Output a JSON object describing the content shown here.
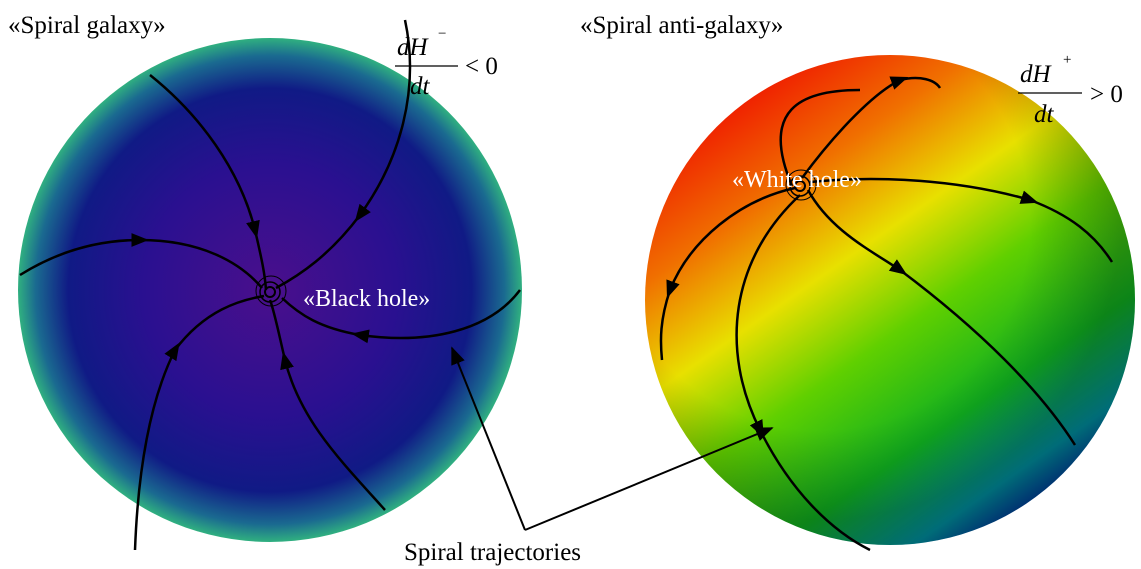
{
  "left_panel": {
    "title": "«Spiral galaxy»",
    "formula": {
      "numerator": "dH",
      "superscript": "−",
      "denominator": "dt",
      "relation": "< 0"
    },
    "center_label": "«Black hole»"
  },
  "right_panel": {
    "title": "«Spiral anti-galaxy»",
    "formula": {
      "numerator": "dH",
      "superscript": "+",
      "denominator": "dt",
      "relation": "> 0"
    },
    "center_label": "«White hole»"
  },
  "caption": "Spiral trajectories"
}
